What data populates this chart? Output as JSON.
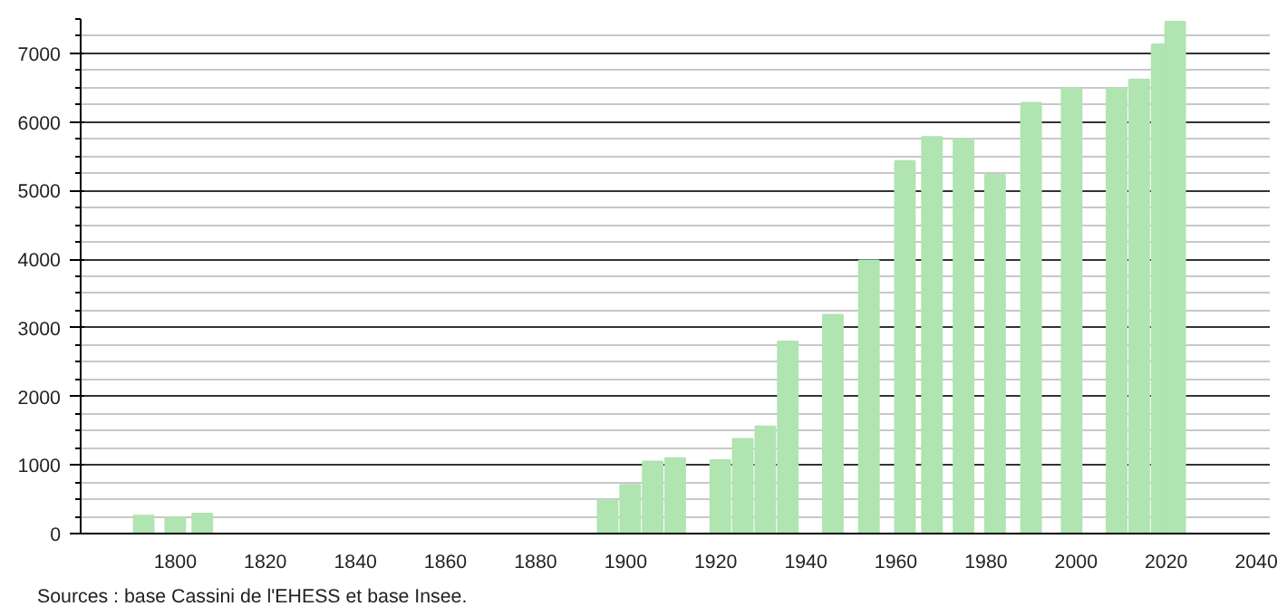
{
  "chart_data": {
    "type": "bar",
    "x": [
      1793,
      1800,
      1806,
      1896,
      1901,
      1906,
      1911,
      1921,
      1926,
      1931,
      1936,
      1946,
      1954,
      1962,
      1968,
      1975,
      1982,
      1990,
      1999,
      2007,
      2009,
      2014,
      2019,
      2022
    ],
    "values": [
      260,
      230,
      290,
      490,
      710,
      1050,
      1100,
      1070,
      1380,
      1560,
      2800,
      3190,
      3980,
      5430,
      5780,
      5750,
      5230,
      6280,
      6490,
      null,
      6490,
      6620,
      7130,
      7460
    ],
    "color": "#b0e4b0",
    "xlim": [
      1779,
      2043
    ],
    "xticks": [
      1800,
      1820,
      1840,
      1860,
      1880,
      1900,
      1920,
      1940,
      1960,
      1980,
      2000,
      2020,
      2040
    ],
    "ylim": [
      0,
      7500
    ],
    "yticks": [
      0,
      {
        "value": 250,
        "label": null
      },
      {
        "value": 500,
        "label": null
      },
      {
        "value": 750,
        "label": null
      },
      1000,
      {
        "value": 1250,
        "label": null
      },
      {
        "value": 1500,
        "label": null
      },
      {
        "value": 1750,
        "label": null
      },
      2000,
      {
        "value": 2250,
        "label": null
      },
      {
        "value": 2500,
        "label": null
      },
      {
        "value": 2750,
        "label": null
      },
      3000,
      {
        "value": 3250,
        "label": null
      },
      {
        "value": 3500,
        "label": null
      },
      {
        "value": 3750,
        "label": null
      },
      4000,
      {
        "value": 4250,
        "label": null
      },
      {
        "value": 4500,
        "label": null
      },
      {
        "value": 4750,
        "label": null
      },
      5000,
      {
        "value": 5250,
        "label": null
      },
      {
        "value": 5500,
        "label": null
      },
      {
        "value": 5750,
        "label": null
      },
      6000,
      {
        "value": 6250,
        "label": null
      },
      {
        "value": 6500,
        "label": null
      },
      {
        "value": 6750,
        "label": null
      },
      7000,
      {
        "value": 7250,
        "label": null
      },
      {
        "value": 7500,
        "label": null
      }
    ],
    "grid": "y",
    "annotations": [
      "Sources : base Cassini de l'EHESS et base Insee."
    ]
  }
}
